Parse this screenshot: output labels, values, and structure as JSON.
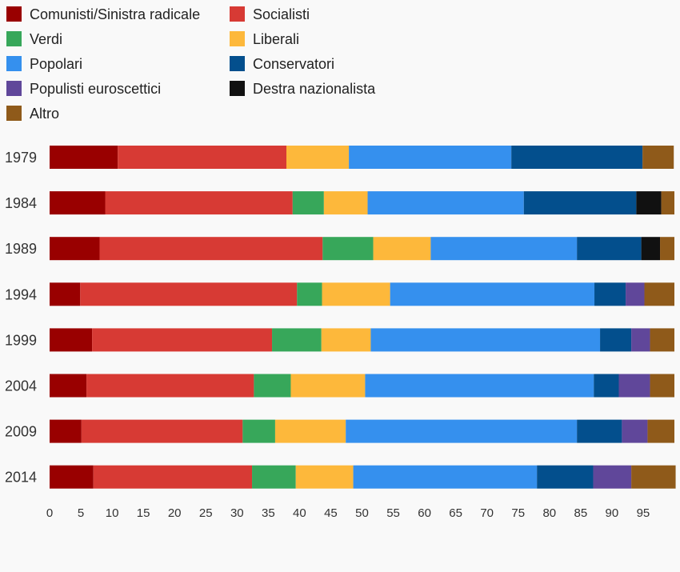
{
  "chart_data": {
    "type": "bar",
    "orientation": "horizontal",
    "stacked": true,
    "categories": [
      "1979",
      "1984",
      "1989",
      "1994",
      "1999",
      "2004",
      "2009",
      "2014"
    ],
    "xlim": [
      0,
      100
    ],
    "xticks": [
      0,
      5,
      10,
      15,
      20,
      25,
      30,
      35,
      40,
      45,
      50,
      55,
      60,
      65,
      70,
      75,
      80,
      85,
      90,
      95
    ],
    "grid": false,
    "legend_position": "top-left",
    "series": [
      {
        "name": "Comunisti/Sinistra radicale",
        "color": "#990000",
        "values": [
          10.9,
          8.9,
          8.0,
          4.9,
          6.8,
          5.9,
          5.1,
          7.0
        ]
      },
      {
        "name": "Socialisti",
        "color": "#d73a34",
        "values": [
          27.0,
          30.0,
          35.7,
          34.7,
          28.8,
          26.8,
          25.8,
          25.4
        ]
      },
      {
        "name": "Verdi",
        "color": "#37a75a",
        "values": [
          0.0,
          5.0,
          8.1,
          4.0,
          7.9,
          5.9,
          5.2,
          7.0
        ]
      },
      {
        "name": "Liberali",
        "color": "#fdb83b",
        "values": [
          10.0,
          7.0,
          9.2,
          10.9,
          7.9,
          11.9,
          11.3,
          9.2
        ]
      },
      {
        "name": "Popolari",
        "color": "#3590ee",
        "values": [
          26.0,
          25.0,
          23.4,
          32.7,
          36.7,
          36.6,
          37.0,
          29.4
        ]
      },
      {
        "name": "Conservatori",
        "color": "#034f8d",
        "values": [
          21.0,
          18.0,
          10.3,
          5.0,
          5.0,
          4.0,
          7.2,
          9.0
        ]
      },
      {
        "name": "Populisti euroscettici",
        "color": "#60479a",
        "values": [
          0.0,
          0.0,
          0.0,
          3.0,
          3.0,
          5.0,
          4.1,
          6.1
        ]
      },
      {
        "name": "Destra nazionalista",
        "color": "#111111",
        "values": [
          0.0,
          4.0,
          3.0,
          0.0,
          0.0,
          0.0,
          0.0,
          0.0
        ]
      },
      {
        "name": "Altro",
        "color": "#8f5a1a",
        "values": [
          5.0,
          2.1,
          2.3,
          4.8,
          3.9,
          3.9,
          4.3,
          7.1
        ]
      }
    ]
  }
}
